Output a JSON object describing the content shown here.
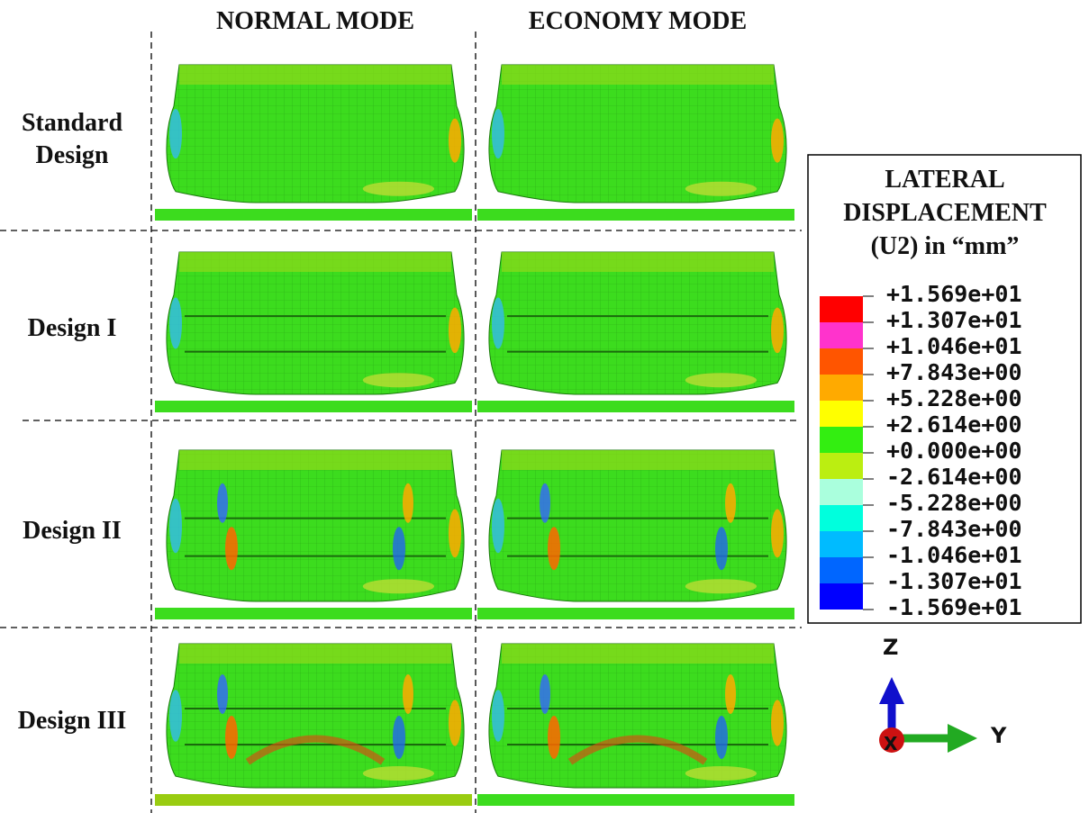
{
  "columns": [
    "NORMAL MODE",
    "ECONOMY MODE"
  ],
  "rows": [
    "Standard Design",
    "Design I",
    "Design II",
    "Design III"
  ],
  "legend": {
    "title_lines": [
      "LATERAL",
      "DISPLACEMENT",
      "(U2) in “mm”"
    ],
    "labels": [
      "+1.569e+01",
      "+1.307e+01",
      "+1.046e+01",
      "+7.843e+00",
      "+5.228e+00",
      "+2.614e+00",
      "+0.000e+00",
      "-2.614e+00",
      "-5.228e+00",
      "-7.843e+00",
      "-1.046e+01",
      "-1.307e+01",
      "-1.569e+01"
    ],
    "colors": [
      "#ff0000",
      "#ff33cc",
      "#ff5500",
      "#ffaa00",
      "#ffff00",
      "#33ee11",
      "#bbee11",
      "#aaffdd",
      "#00ffdd",
      "#00bbff",
      "#0066ff",
      "#0000ff"
    ]
  },
  "axes": {
    "z": "Z",
    "y": "Y",
    "x": "X"
  }
}
